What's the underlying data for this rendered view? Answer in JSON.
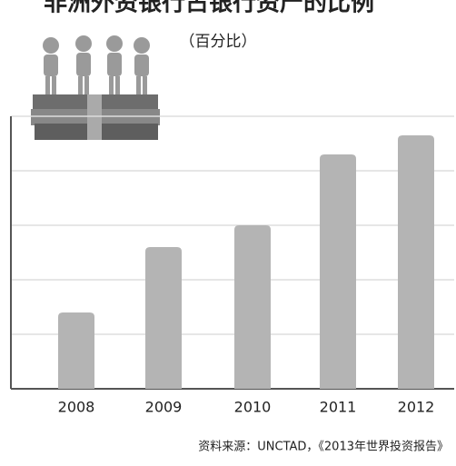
{
  "chart_data": {
    "type": "bar",
    "title": "非洲外资银行占银行资产的比例",
    "subtitle": "（百分比）",
    "source": "资料来源：UNCTAD，《2013年世界投资报告》",
    "categories": [
      "2008",
      "2009",
      "2010",
      "2011",
      "2012"
    ],
    "values": [
      14,
      26,
      30,
      43,
      46.5
    ],
    "color": "#b4b4b4",
    "ylim": [
      0,
      50
    ],
    "yticks": [
      0,
      10,
      20,
      30,
      40,
      50
    ],
    "show_ytick_labels": false,
    "grid": true
  }
}
